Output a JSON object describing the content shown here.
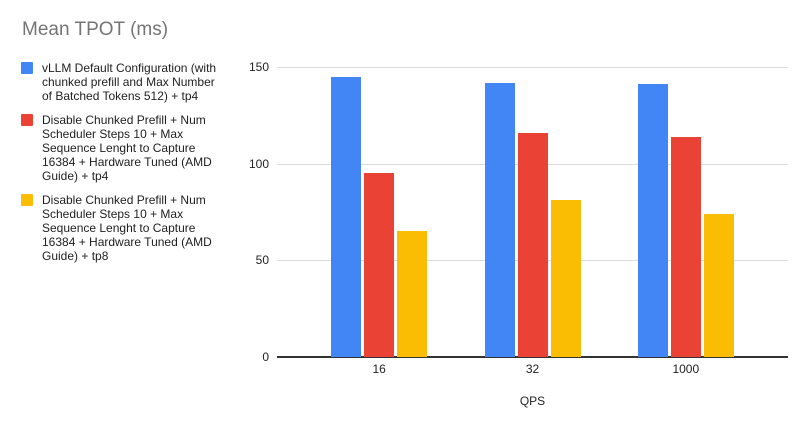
{
  "chart_data": {
    "type": "bar",
    "title": "Mean TPOT (ms)",
    "xlabel": "QPS",
    "ylabel": "",
    "categories": [
      "16",
      "32",
      "1000"
    ],
    "series": [
      {
        "name": "vLLM Default Configuration (with chunked prefill and Max Number of Batched Tokens 512) + tp4",
        "color": "#4285F4",
        "values": [
          145,
          141.5,
          141
        ]
      },
      {
        "name": "Disable Chunked Prefill + Num Scheduler Steps 10 + Max Sequence Lenght to Capture 16384 + Hardware Tuned (AMD Guide) + tp4",
        "color": "#EA4335",
        "values": [
          95,
          116,
          114
        ]
      },
      {
        "name": "Disable Chunked Prefill + Num Scheduler Steps 10 + Max Sequence Lenght to Capture 16384 + Hardware Tuned (AMD Guide) + tp8",
        "color": "#FBBC04",
        "values": [
          65,
          81,
          74
        ]
      }
    ],
    "ylim": [
      0,
      150
    ],
    "yticks": [
      0,
      50,
      100,
      150
    ],
    "grid": true,
    "legend_position": "left"
  },
  "legend": {
    "items": [
      {
        "color": "#4285F4",
        "lines": [
          "vLLM Default Configuration (with",
          "chunked prefill and Max Number",
          "of Batched Tokens 512) + tp4"
        ]
      },
      {
        "color": "#EA4335",
        "lines": [
          "Disable Chunked Prefill + Num",
          "Scheduler Steps 10 + Max",
          "Sequence Lenght to Capture",
          "16384 + Hardware Tuned (AMD",
          "Guide) + tp4"
        ]
      },
      {
        "color": "#FBBC04",
        "lines": [
          "Disable Chunked Prefill + Num",
          "Scheduler Steps 10 + Max",
          "Sequence Lenght to Capture",
          "16384 + Hardware Tuned (AMD",
          "Guide) + tp8"
        ]
      }
    ]
  },
  "colors": {
    "title_text": "#757575",
    "axis_text": "#222222",
    "legend_text": "#212121",
    "gridline": "#dadce0",
    "baseline": "#333333",
    "background": "#ffffff"
  }
}
